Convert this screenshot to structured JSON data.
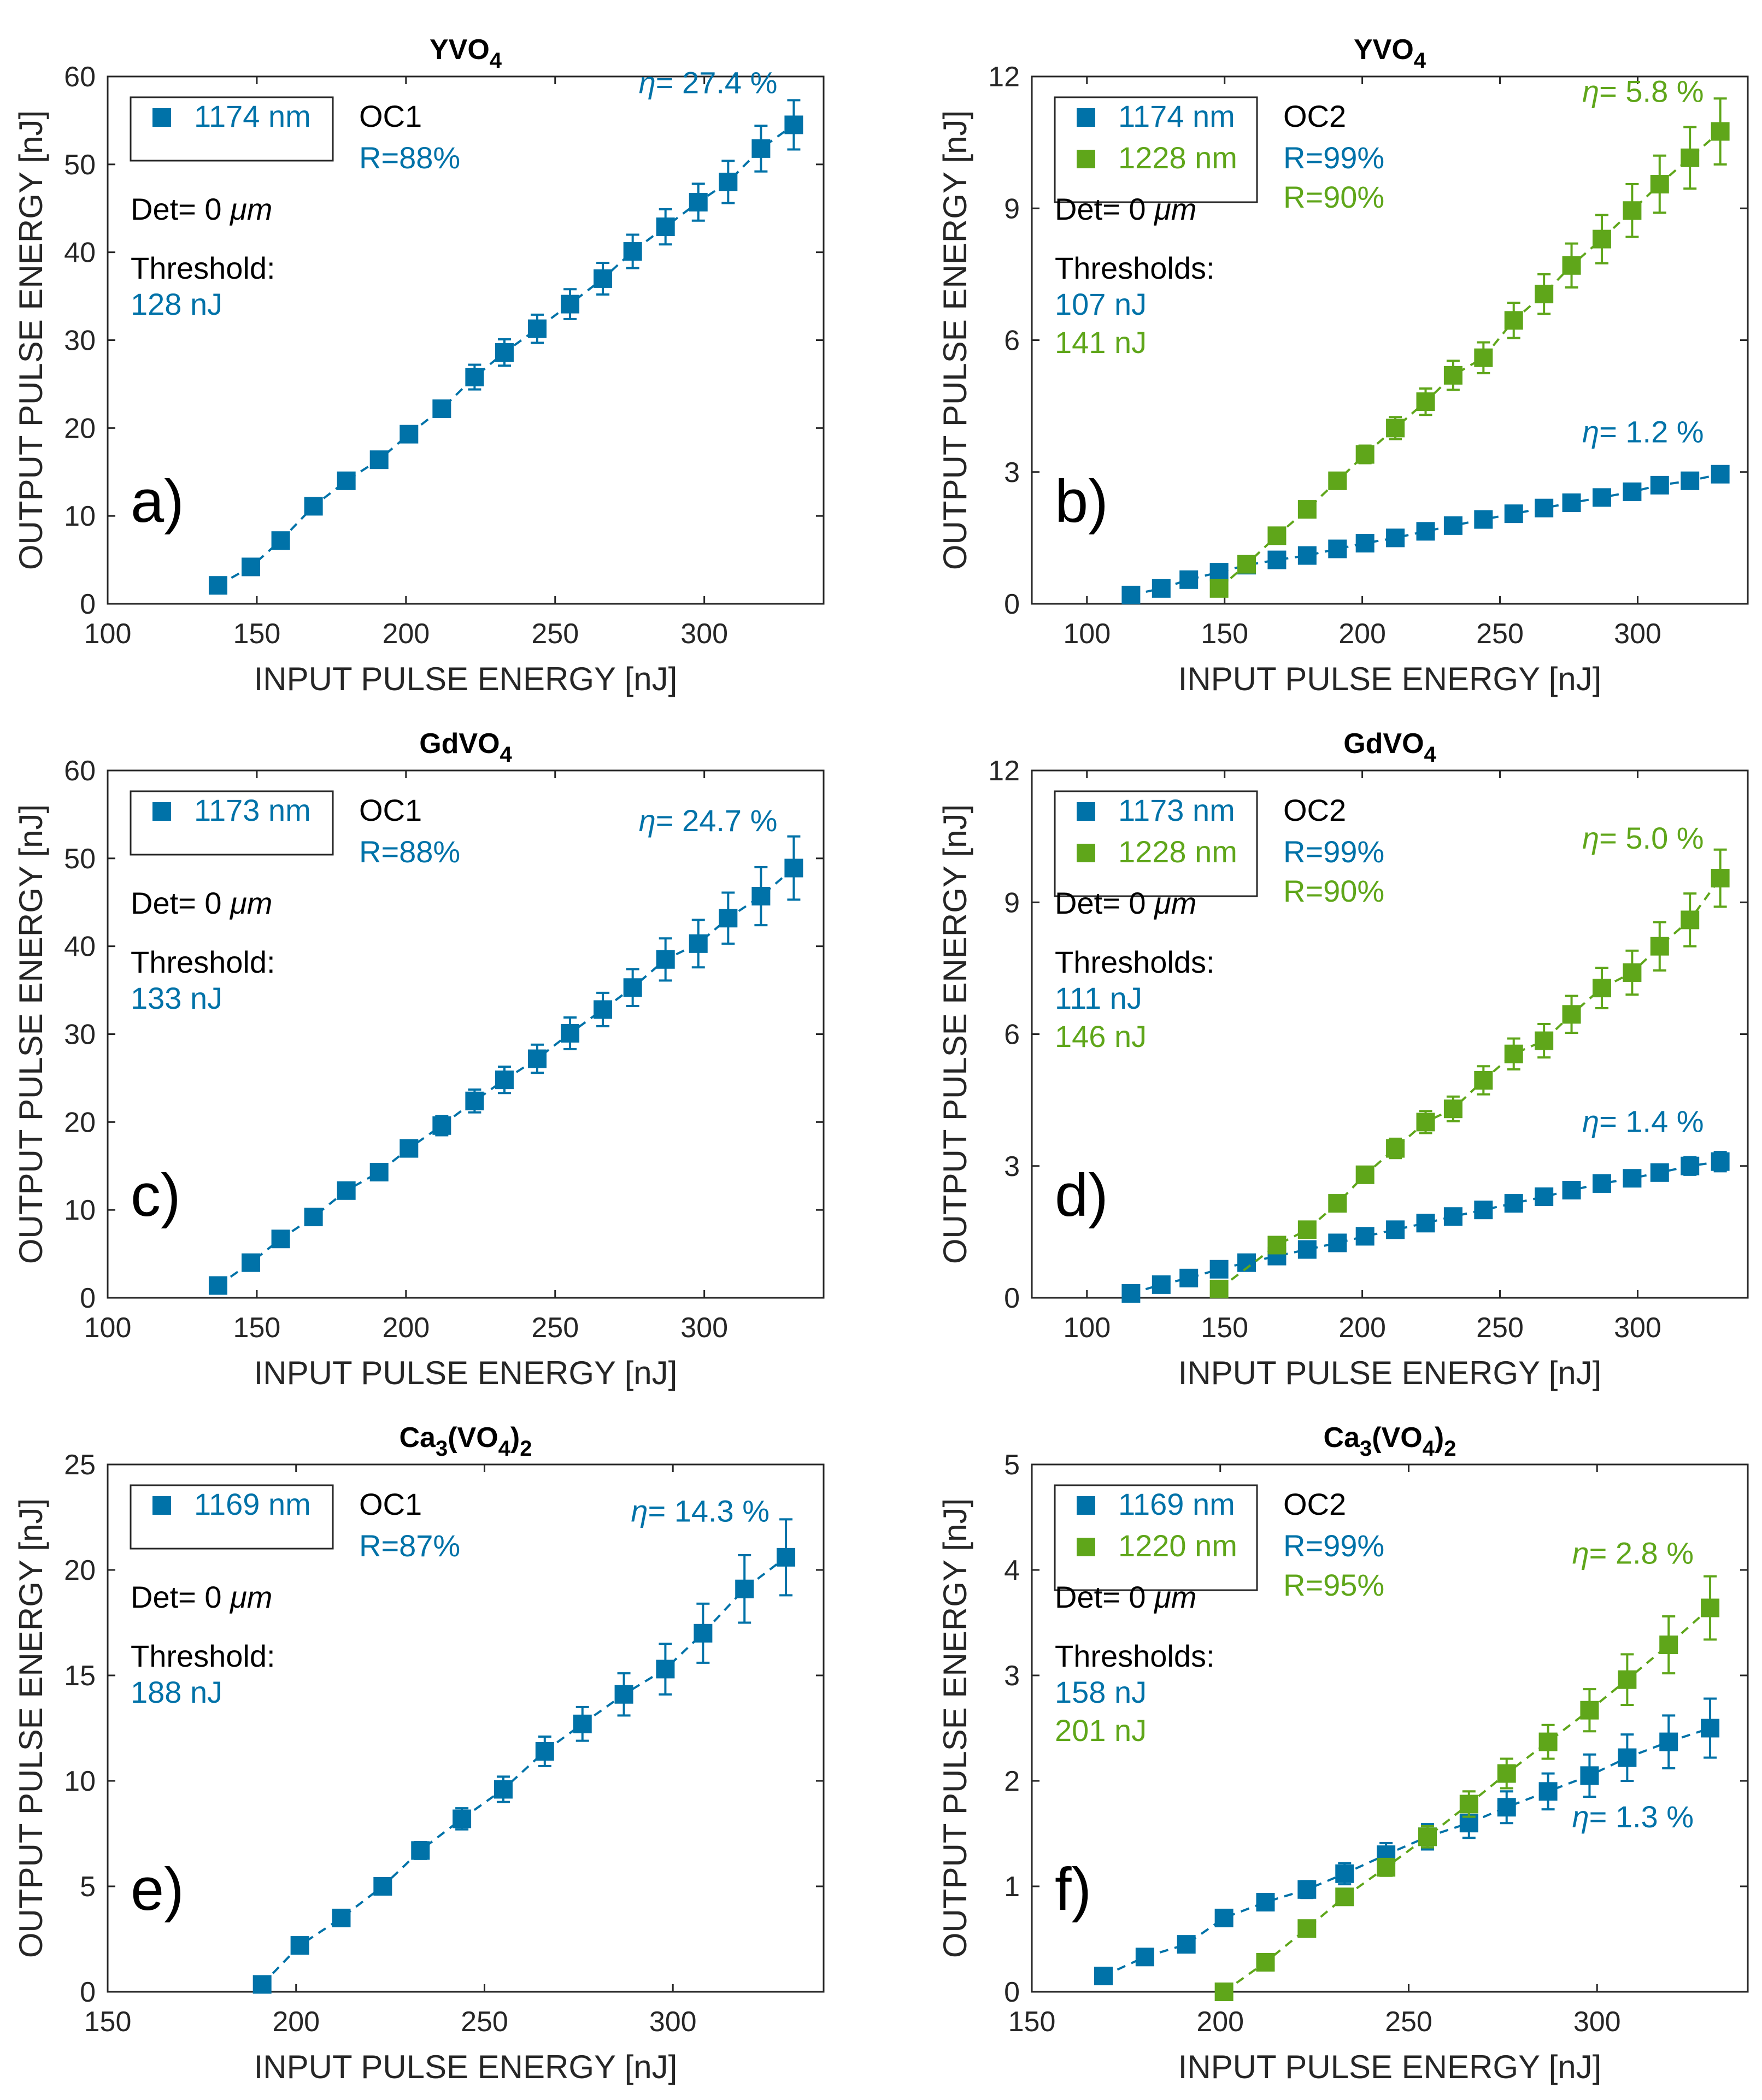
{
  "colors": {
    "blue": "#0072a8",
    "green": "#5fa61a",
    "dark": "#262626"
  },
  "chart_data": [
    {
      "id": "a",
      "type": "scatter",
      "title": "YVO",
      "title_sub": "4",
      "title_tail": "",
      "title_sub2": "",
      "panel_label": "a)",
      "xlabel": "INPUT PULSE ENERGY [nJ]",
      "ylabel": "OUTPUT PULSE ENERGY [nJ]",
      "xlim": [
        100,
        340
      ],
      "ylim": [
        0,
        60
      ],
      "xticks": [
        100,
        150,
        200,
        250,
        300
      ],
      "yticks": [
        0,
        10,
        20,
        30,
        40,
        50,
        60
      ],
      "legend": [
        {
          "label": "1174 nm",
          "color": "blue"
        }
      ],
      "oc": "OC1",
      "reflectances": [
        {
          "text": "R=88%",
          "color": "blue"
        }
      ],
      "det_prefix": "Det= 0 ",
      "det_unit": "μm",
      "threshold_label": "Threshold:",
      "thresholds": [
        {
          "text": "128 nJ",
          "color": "blue"
        }
      ],
      "efficiencies": [
        {
          "symbol": "η",
          "text": "= 27.4 %",
          "color": "blue",
          "at": [
            330,
            55
          ]
        }
      ],
      "series": [
        {
          "name": "1174 nm",
          "color": "blue",
          "x": [
            137,
            148,
            158,
            169,
            180,
            191,
            201,
            212,
            223,
            233,
            244,
            255,
            266,
            276,
            287,
            298,
            308,
            319,
            330
          ],
          "y": [
            2.1,
            4.2,
            7.2,
            11.1,
            14.0,
            16.4,
            19.3,
            22.2,
            25.8,
            28.6,
            31.3,
            34.1,
            37.0,
            40.1,
            42.9,
            45.7,
            48.0,
            51.8,
            54.5
          ],
          "err": [
            0.3,
            0.5,
            0.6,
            0.6,
            0.6,
            0.7,
            0.8,
            0.9,
            1.4,
            1.5,
            1.6,
            1.7,
            1.8,
            1.9,
            2.0,
            2.1,
            2.4,
            2.6,
            2.8
          ]
        }
      ]
    },
    {
      "id": "b",
      "type": "scatter",
      "title": "YVO",
      "title_sub": "4",
      "title_tail": "",
      "title_sub2": "",
      "panel_label": "b)",
      "xlabel": "INPUT PULSE ENERGY [nJ]",
      "ylabel": "OUTPUT PULSE ENERGY [nJ]",
      "xlim": [
        80,
        340
      ],
      "ylim": [
        0,
        12
      ],
      "xticks": [
        100,
        150,
        200,
        250,
        300
      ],
      "yticks": [
        0,
        3,
        6,
        9,
        12
      ],
      "legend": [
        {
          "label": "1174 nm",
          "color": "blue"
        },
        {
          "label": "1228 nm",
          "color": "green"
        }
      ],
      "oc": "OC2",
      "reflectances": [
        {
          "text": "R=99%",
          "color": "blue"
        },
        {
          "text": "R=90%",
          "color": "green"
        }
      ],
      "det_prefix": "Det= 0 ",
      "det_unit": "μm",
      "threshold_label": "Thresholds:",
      "thresholds": [
        {
          "text": "107 nJ",
          "color": "blue"
        },
        {
          "text": "141 nJ",
          "color": "green"
        }
      ],
      "efficiencies": [
        {
          "symbol": "η",
          "text": "= 5.8 %",
          "color": "green",
          "at": [
            330,
            10.8
          ]
        },
        {
          "symbol": "η",
          "text": "= 1.2 %",
          "color": "blue",
          "at": [
            330,
            3.05
          ]
        }
      ],
      "series": [
        {
          "name": "1174 nm",
          "color": "blue",
          "x": [
            116,
            127,
            137,
            148,
            158,
            169,
            180,
            191,
            201,
            212,
            223,
            233,
            244,
            255,
            266,
            276,
            287,
            298,
            308,
            319,
            330
          ],
          "y": [
            0.2,
            0.35,
            0.55,
            0.72,
            0.88,
            1.0,
            1.1,
            1.25,
            1.38,
            1.5,
            1.65,
            1.78,
            1.92,
            2.05,
            2.18,
            2.3,
            2.42,
            2.55,
            2.7,
            2.8,
            2.95
          ],
          "err": [
            0.05,
            0.05,
            0.05,
            0.05,
            0.05,
            0.06,
            0.06,
            0.06,
            0.07,
            0.07,
            0.08,
            0.08,
            0.09,
            0.1,
            0.11,
            0.12,
            0.13,
            0.14,
            0.15,
            0.16,
            0.18
          ]
        },
        {
          "name": "1228 nm",
          "color": "green",
          "x": [
            148,
            158,
            169,
            180,
            191,
            201,
            212,
            223,
            233,
            244,
            255,
            266,
            276,
            287,
            298,
            308,
            319,
            330
          ],
          "y": [
            0.35,
            0.9,
            1.55,
            2.15,
            2.8,
            3.4,
            4.0,
            4.6,
            5.2,
            5.6,
            6.45,
            7.05,
            7.7,
            8.3,
            8.95,
            9.55,
            10.15,
            10.75
          ],
          "err": [
            0.05,
            0.08,
            0.1,
            0.12,
            0.15,
            0.2,
            0.25,
            0.3,
            0.33,
            0.35,
            0.4,
            0.45,
            0.5,
            0.55,
            0.6,
            0.65,
            0.7,
            0.75
          ]
        }
      ]
    },
    {
      "id": "c",
      "type": "scatter",
      "title": "GdVO",
      "title_sub": "4",
      "title_tail": "",
      "title_sub2": "",
      "panel_label": "c)",
      "xlabel": "INPUT PULSE ENERGY [nJ]",
      "ylabel": "OUTPUT PULSE ENERGY [nJ]",
      "xlim": [
        100,
        340
      ],
      "ylim": [
        0,
        60
      ],
      "xticks": [
        100,
        150,
        200,
        250,
        300
      ],
      "yticks": [
        0,
        10,
        20,
        30,
        40,
        50,
        60
      ],
      "legend": [
        {
          "label": "1173 nm",
          "color": "blue"
        }
      ],
      "oc": "OC1",
      "reflectances": [
        {
          "text": "R=88%",
          "color": "blue"
        }
      ],
      "det_prefix": "Det= 0 ",
      "det_unit": "μm",
      "threshold_label": "Threshold:",
      "thresholds": [
        {
          "text": "133 nJ",
          "color": "blue"
        }
      ],
      "efficiencies": [
        {
          "symbol": "η",
          "text": "= 24.7 %",
          "color": "blue",
          "at": [
            330,
            50
          ]
        }
      ],
      "series": [
        {
          "name": "1173 nm",
          "color": "blue",
          "x": [
            137,
            148,
            158,
            169,
            180,
            191,
            201,
            212,
            223,
            233,
            244,
            255,
            266,
            276,
            287,
            298,
            308,
            319,
            330
          ],
          "y": [
            1.4,
            4.0,
            6.7,
            9.2,
            12.2,
            14.3,
            17.0,
            19.6,
            22.4,
            24.8,
            27.2,
            30.1,
            32.8,
            35.3,
            38.5,
            40.3,
            43.2,
            45.7,
            48.9
          ],
          "err": [
            0.3,
            0.5,
            0.6,
            0.6,
            0.7,
            0.8,
            0.9,
            1.1,
            1.3,
            1.5,
            1.6,
            1.8,
            1.9,
            2.1,
            2.4,
            2.7,
            2.9,
            3.3,
            3.6
          ]
        }
      ]
    },
    {
      "id": "d",
      "type": "scatter",
      "title": "GdVO",
      "title_sub": "4",
      "title_tail": "",
      "title_sub2": "",
      "panel_label": "d)",
      "xlabel": "INPUT PULSE ENERGY [nJ]",
      "ylabel": "OUTPUT PULSE ENERGY [nJ]",
      "xlim": [
        80,
        340
      ],
      "ylim": [
        0,
        12
      ],
      "xticks": [
        100,
        150,
        200,
        250,
        300
      ],
      "yticks": [
        0,
        3,
        6,
        9,
        12
      ],
      "legend": [
        {
          "label": "1173 nm",
          "color": "blue"
        },
        {
          "label": "1228 nm",
          "color": "green"
        }
      ],
      "oc": "OC2",
      "reflectances": [
        {
          "text": "R=99%",
          "color": "blue"
        },
        {
          "text": "R=90%",
          "color": "green"
        }
      ],
      "det_prefix": "Det= 0 ",
      "det_unit": "μm",
      "threshold_label": "Thresholds:",
      "thresholds": [
        {
          "text": "111 nJ",
          "color": "blue"
        },
        {
          "text": "146 nJ",
          "color": "green"
        }
      ],
      "efficiencies": [
        {
          "symbol": "η",
          "text": "= 5.0 %",
          "color": "green",
          "at": [
            330,
            9.6
          ]
        },
        {
          "symbol": "η",
          "text": "= 1.4 %",
          "color": "blue",
          "at": [
            330,
            3.15
          ]
        }
      ],
      "series": [
        {
          "name": "1173 nm",
          "color": "blue",
          "x": [
            116,
            127,
            137,
            148,
            158,
            169,
            180,
            191,
            201,
            212,
            223,
            233,
            244,
            255,
            266,
            276,
            287,
            298,
            308,
            319,
            330
          ],
          "y": [
            0.1,
            0.3,
            0.45,
            0.65,
            0.8,
            0.95,
            1.1,
            1.25,
            1.4,
            1.55,
            1.7,
            1.85,
            2.0,
            2.15,
            2.3,
            2.45,
            2.6,
            2.72,
            2.85,
            3.0,
            3.1
          ],
          "err": [
            0.05,
            0.05,
            0.05,
            0.05,
            0.06,
            0.06,
            0.06,
            0.07,
            0.07,
            0.08,
            0.08,
            0.09,
            0.1,
            0.1,
            0.11,
            0.12,
            0.13,
            0.15,
            0.17,
            0.2,
            0.22
          ]
        },
        {
          "name": "1228 nm",
          "color": "green",
          "x": [
            148,
            169,
            180,
            191,
            201,
            212,
            223,
            233,
            244,
            255,
            266,
            276,
            287,
            298,
            308,
            319,
            330
          ],
          "y": [
            0.2,
            1.2,
            1.55,
            2.15,
            2.8,
            3.4,
            4.0,
            4.3,
            4.95,
            5.55,
            5.85,
            6.45,
            7.05,
            7.4,
            8.0,
            8.6,
            9.55
          ],
          "err": [
            0.05,
            0.1,
            0.12,
            0.15,
            0.18,
            0.22,
            0.25,
            0.28,
            0.32,
            0.35,
            0.38,
            0.42,
            0.46,
            0.5,
            0.55,
            0.6,
            0.65
          ]
        }
      ]
    },
    {
      "id": "e",
      "type": "scatter",
      "title": "Ca",
      "title_sub": "3",
      "title_tail": "(VO",
      "title_sub2": "4",
      "title_end": ")",
      "title_sub3": "2",
      "panel_label": "e)",
      "xlabel": "INPUT PULSE ENERGY [nJ]",
      "ylabel": "OUTPUT PULSE ENERGY [nJ]",
      "xlim": [
        150,
        340
      ],
      "ylim": [
        0,
        25
      ],
      "xticks": [
        150,
        200,
        250,
        300
      ],
      "yticks": [
        0,
        5,
        10,
        15,
        20,
        25
      ],
      "legend": [
        {
          "label": "1169 nm",
          "color": "blue"
        }
      ],
      "oc": "OC1",
      "reflectances": [
        {
          "text": "R=87%",
          "color": "blue"
        }
      ],
      "det_prefix": "Det= 0 ",
      "det_unit": "μm",
      "threshold_label": "Threshold:",
      "thresholds": [
        {
          "text": "188 nJ",
          "color": "blue"
        }
      ],
      "efficiencies": [
        {
          "symbol": "η",
          "text": "= 14.3 %",
          "color": "blue",
          "at": [
            330,
            21
          ]
        }
      ],
      "series": [
        {
          "name": "1169 nm",
          "color": "blue",
          "x": [
            191,
            201,
            212,
            223,
            233,
            244,
            255,
            266,
            276,
            287,
            298,
            308,
            319,
            330
          ],
          "y": [
            0.35,
            2.2,
            3.5,
            5.0,
            6.7,
            8.2,
            9.6,
            11.4,
            12.7,
            14.1,
            15.3,
            17.0,
            19.1,
            20.6
          ],
          "err": [
            0.1,
            0.2,
            0.25,
            0.3,
            0.4,
            0.5,
            0.6,
            0.7,
            0.8,
            1.0,
            1.2,
            1.4,
            1.6,
            1.8
          ]
        }
      ]
    },
    {
      "id": "f",
      "type": "scatter",
      "title": "Ca",
      "title_sub": "3",
      "title_tail": "(VO",
      "title_sub2": "4",
      "title_end": ")",
      "title_sub3": "2",
      "panel_label": "f)",
      "xlabel": "INPUT PULSE ENERGY [nJ]",
      "ylabel": "OUTPUT PULSE ENERGY [nJ]",
      "xlim": [
        150,
        340
      ],
      "ylim": [
        0,
        5
      ],
      "xticks": [
        150,
        200,
        250,
        300
      ],
      "yticks": [
        0,
        1,
        2,
        3,
        4,
        5
      ],
      "legend": [
        {
          "label": "1169 nm",
          "color": "blue"
        },
        {
          "label": "1220 nm",
          "color": "green"
        }
      ],
      "oc": "OC2",
      "reflectances": [
        {
          "text": "R=99%",
          "color": "blue"
        },
        {
          "text": "R=95%",
          "color": "green"
        }
      ],
      "det_prefix": "Det= 0 ",
      "det_unit": "μm",
      "threshold_label": "Thresholds:",
      "thresholds": [
        {
          "text": "158 nJ",
          "color": "blue"
        },
        {
          "text": "201 nJ",
          "color": "green"
        }
      ],
      "efficiencies": [
        {
          "symbol": "η",
          "text": "= 2.8 %",
          "color": "green",
          "at": [
            330,
            3.8
          ]
        },
        {
          "symbol": "η",
          "text": "= 1.3 %",
          "color": "blue",
          "at": [
            330,
            1.3
          ]
        }
      ],
      "series": [
        {
          "name": "1169 nm",
          "color": "blue",
          "x": [
            169,
            180,
            191,
            201,
            212,
            223,
            233,
            244,
            255,
            266,
            276,
            287,
            298,
            308,
            319,
            330
          ],
          "y": [
            0.15,
            0.33,
            0.45,
            0.7,
            0.85,
            0.97,
            1.12,
            1.3,
            1.47,
            1.6,
            1.75,
            1.9,
            2.05,
            2.22,
            2.37,
            2.5
          ],
          "err": [
            0.03,
            0.03,
            0.04,
            0.05,
            0.06,
            0.08,
            0.1,
            0.11,
            0.12,
            0.14,
            0.15,
            0.17,
            0.2,
            0.22,
            0.25,
            0.28
          ]
        },
        {
          "name": "1220 nm",
          "color": "green",
          "x": [
            201,
            212,
            223,
            233,
            244,
            255,
            266,
            276,
            287,
            298,
            308,
            319,
            330
          ],
          "y": [
            0.0,
            0.28,
            0.6,
            0.9,
            1.18,
            1.47,
            1.78,
            2.07,
            2.37,
            2.67,
            2.96,
            3.29,
            3.64
          ],
          "err": [
            0.03,
            0.04,
            0.05,
            0.06,
            0.08,
            0.1,
            0.12,
            0.14,
            0.16,
            0.2,
            0.24,
            0.27,
            0.3
          ]
        }
      ]
    }
  ]
}
